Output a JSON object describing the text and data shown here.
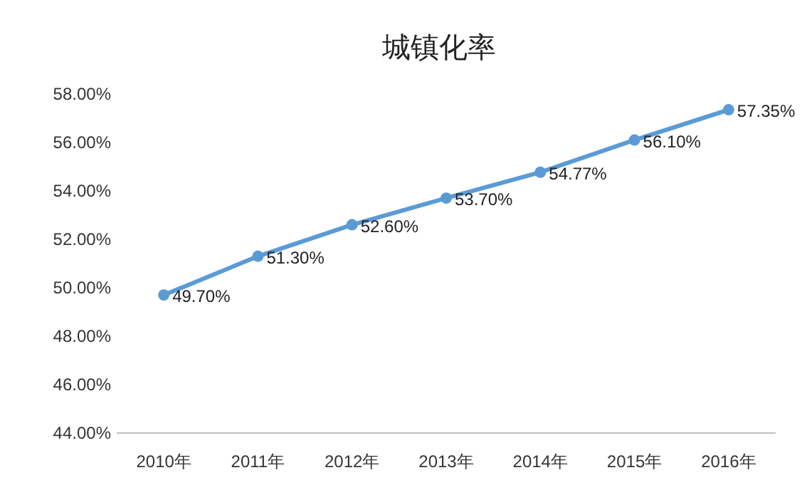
{
  "chart_data": {
    "type": "line",
    "title": "城镇化率",
    "categories": [
      "2010年",
      "2011年",
      "2012年",
      "2013年",
      "2014年",
      "2015年",
      "2016年"
    ],
    "series": [
      {
        "color": "#5b9bd5",
        "values": [
          49.7,
          51.3,
          52.6,
          53.7,
          54.77,
          56.1,
          57.35
        ],
        "value_labels": [
          "49.70%",
          "51.30%",
          "52.60%",
          "53.70%",
          "54.77%",
          "56.10%",
          "57.35%"
        ]
      }
    ],
    "ylim": [
      44,
      58
    ],
    "yticks": [
      {
        "value": 44,
        "label": "44.00%"
      },
      {
        "value": 46,
        "label": "46.00%"
      },
      {
        "value": 48,
        "label": "48.00%"
      },
      {
        "value": 50,
        "label": "50.00%"
      },
      {
        "value": 52,
        "label": "52.00%"
      },
      {
        "value": 54,
        "label": "54.00%"
      },
      {
        "value": 56,
        "label": "56.00%"
      },
      {
        "value": 58,
        "label": "58.00%"
      }
    ],
    "marker": "circle",
    "line_style": "solid"
  }
}
